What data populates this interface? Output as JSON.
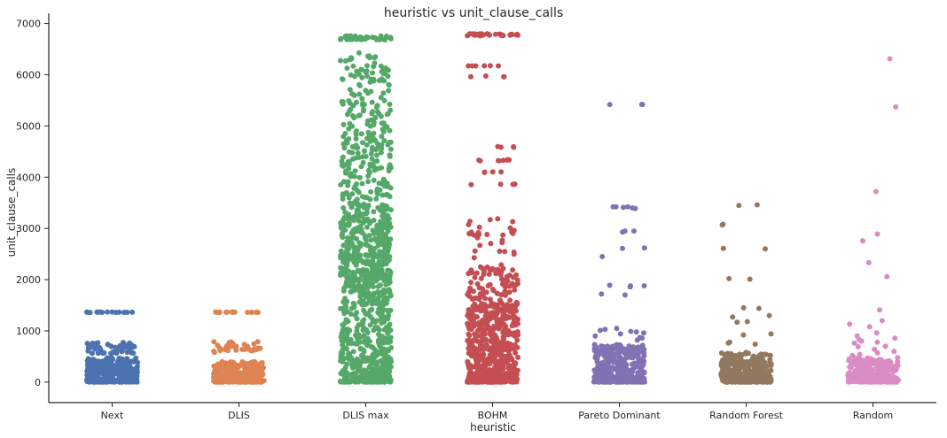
{
  "chart_data": {
    "type": "scatter",
    "style": "strip",
    "title": "heuristic vs unit_clause_calls",
    "xlabel": "heuristic",
    "ylabel": "unit_clause_calls",
    "ylim": [
      -400,
      7200
    ],
    "yticks": [
      0,
      1000,
      2000,
      3000,
      4000,
      5000,
      6000,
      7000
    ],
    "grid": false,
    "categories": [
      "Next",
      "DLIS",
      "DLIS max",
      "BOHM",
      "Pareto Dominant",
      "Random Forest",
      "Random"
    ],
    "series": [
      {
        "category": "Next",
        "color": "#4c72b0",
        "bulk_max": 480,
        "clusters": [
          [
            0,
            480,
            340
          ],
          [
            560,
            780,
            50
          ],
          [
            1360,
            1370,
            16
          ]
        ]
      },
      {
        "category": "DLIS",
        "color": "#dd8452",
        "bulk_max": 400,
        "clusters": [
          [
            0,
            400,
            320
          ],
          [
            580,
            790,
            40
          ],
          [
            1360,
            1370,
            16
          ]
        ]
      },
      {
        "category": "DLIS max",
        "color": "#55a868",
        "bulk_max": 2500,
        "clusters": [
          [
            0,
            1500,
            420
          ],
          [
            1500,
            2500,
            260
          ],
          [
            2500,
            3500,
            190
          ],
          [
            3500,
            4800,
            140
          ],
          [
            4800,
            6000,
            90
          ],
          [
            6000,
            6450,
            30
          ],
          [
            6680,
            6760,
            40
          ]
        ]
      },
      {
        "category": "BOHM",
        "color": "#c44e52",
        "bulk_max": 1450,
        "clusters": [
          [
            0,
            900,
            380
          ],
          [
            900,
            1500,
            170
          ],
          [
            1500,
            2300,
            90
          ],
          [
            2400,
            3220,
            30
          ],
          [
            3850,
            3870,
            4
          ],
          [
            4080,
            4110,
            4
          ],
          [
            4320,
            4340,
            9
          ],
          [
            4580,
            4600,
            4
          ],
          [
            5960,
            5980,
            4
          ],
          [
            6170,
            6180,
            6
          ],
          [
            6760,
            6800,
            40
          ]
        ]
      }
    ],
    "points": [
      {
        "category": "Pareto Dominant",
        "color": "#8172b3",
        "y": [
          5420,
          5420,
          5420,
          3420,
          3420,
          3420,
          3410,
          3400,
          3390,
          2950,
          2950,
          2930,
          2620,
          2610,
          2450,
          1890,
          1880,
          1860,
          1880,
          1720,
          1700,
          1050,
          1030,
          1010,
          990,
          980,
          960,
          940,
          900,
          870,
          860,
          820
        ]
      },
      {
        "category": "Random Forest",
        "color": "#937860",
        "y": [
          3460,
          3450,
          3080,
          3070,
          2610,
          2600,
          2020,
          2010,
          1450,
          1440,
          1300,
          1270,
          1180,
          1170,
          940,
          920,
          780,
          760,
          740
        ]
      },
      {
        "category": "Random",
        "color": "#da8bc3",
        "y": [
          6310,
          5370,
          3720,
          2890,
          2760,
          2330,
          2060,
          1410,
          1200,
          1130,
          1080,
          960,
          900,
          860,
          830,
          800,
          780,
          760,
          700,
          690,
          640,
          600,
          570,
          540,
          520
        ]
      }
    ],
    "bulk_extra": [
      {
        "category": "Pareto Dominant",
        "color": "#8172b3",
        "clusters": [
          [
            0,
            600,
            330
          ],
          [
            600,
            740,
            45
          ]
        ]
      },
      {
        "category": "Random Forest",
        "color": "#937860",
        "clusters": [
          [
            0,
            480,
            330
          ],
          [
            480,
            580,
            30
          ]
        ]
      },
      {
        "category": "Random",
        "color": "#da8bc3",
        "clusters": [
          [
            0,
            480,
            300
          ]
        ]
      }
    ]
  }
}
